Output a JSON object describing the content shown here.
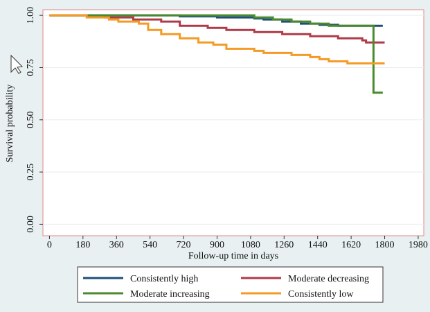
{
  "chart_data": {
    "type": "step",
    "x_label": "Follow-up time in days",
    "y_label": "Survival probability",
    "xlim": [
      -35,
      2010
    ],
    "ylim": [
      -0.055,
      1.027
    ],
    "xticks": [
      0,
      180,
      360,
      540,
      720,
      900,
      1080,
      1260,
      1440,
      1620,
      1800,
      1980
    ],
    "yticks": [
      {
        "value": 0,
        "label": "0.00"
      },
      {
        "value": 0.25,
        "label": "0.25"
      },
      {
        "value": 0.5,
        "label": "0.50"
      },
      {
        "value": 0.75,
        "label": "0.75"
      },
      {
        "value": 1,
        "label": "1.00"
      }
    ],
    "grid": true,
    "series": [
      {
        "name": "Consistently high",
        "color": "#1f4e79",
        "x": [
          0,
          700,
          900,
          1100,
          1150,
          1250,
          1350,
          1450,
          1550,
          1790
        ],
        "values": [
          1.0,
          0.995,
          0.99,
          0.985,
          0.98,
          0.97,
          0.96,
          0.955,
          0.95,
          0.95
        ]
      },
      {
        "name": "Moderate decreasing",
        "color": "#b03a48",
        "x": [
          0,
          300,
          450,
          600,
          700,
          850,
          950,
          1100,
          1250,
          1400,
          1550,
          1680,
          1700,
          1800
        ],
        "values": [
          1.0,
          0.99,
          0.98,
          0.97,
          0.95,
          0.94,
          0.93,
          0.92,
          0.91,
          0.9,
          0.89,
          0.88,
          0.87,
          0.87
        ]
      },
      {
        "name": "Moderate increasing",
        "color": "#4a8a2c",
        "x": [
          0,
          1100,
          1200,
          1300,
          1400,
          1500,
          1740,
          1790
        ],
        "values": [
          1.0,
          0.99,
          0.98,
          0.97,
          0.96,
          0.95,
          0.63,
          0.63
        ]
      },
      {
        "name": "Consistently low",
        "color": "#f59a23",
        "x": [
          0,
          200,
          320,
          370,
          480,
          530,
          600,
          700,
          800,
          880,
          950,
          1100,
          1150,
          1300,
          1400,
          1450,
          1500,
          1600,
          1800
        ],
        "values": [
          1.0,
          0.99,
          0.98,
          0.97,
          0.96,
          0.93,
          0.91,
          0.89,
          0.87,
          0.86,
          0.84,
          0.83,
          0.82,
          0.81,
          0.8,
          0.79,
          0.78,
          0.77,
          0.77
        ]
      }
    ]
  }
}
